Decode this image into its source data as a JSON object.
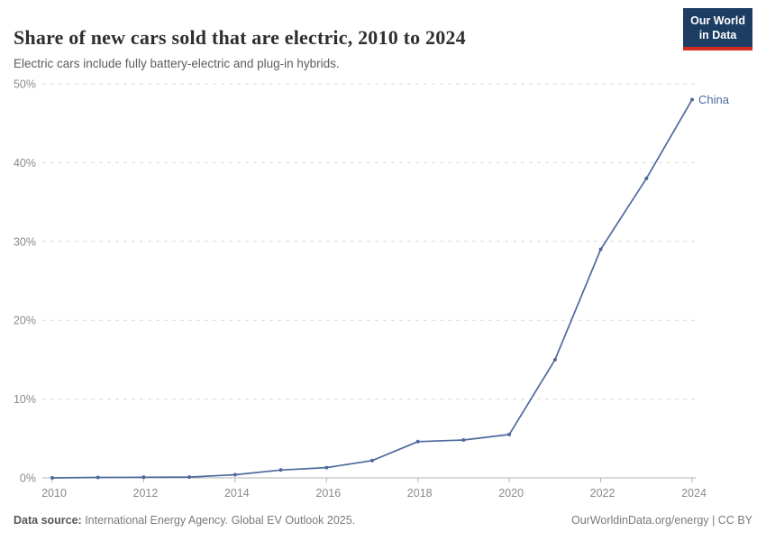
{
  "header": {
    "title": "Share of new cars sold that are electric, 2010 to 2024",
    "subtitle": "Electric cars include fully battery-electric and plug-in hybrids."
  },
  "logo": {
    "line1": "Our World",
    "line2": "in Data"
  },
  "chart_data": {
    "type": "line",
    "title": "Share of new cars sold that are electric, 2010 to 2024",
    "x": [
      2010,
      2011,
      2012,
      2013,
      2014,
      2015,
      2016,
      2017,
      2018,
      2019,
      2020,
      2021,
      2022,
      2023,
      2024
    ],
    "series": [
      {
        "name": "China",
        "values": [
          0,
          0.06,
          0.08,
          0.1,
          0.4,
          1,
          1.3,
          2.2,
          4.6,
          4.8,
          5.5,
          15,
          29,
          38,
          48
        ]
      }
    ],
    "xlabel": "",
    "ylabel": "",
    "ylim": [
      0,
      50
    ],
    "yticks": [
      0,
      10,
      20,
      30,
      40,
      50
    ],
    "ytick_suffix": "%",
    "xticks": [
      2010,
      2012,
      2014,
      2016,
      2018,
      2020,
      2022,
      2024
    ],
    "grid": "horizontal-dashed",
    "legend_position": "end-of-line-label",
    "end_label": "China",
    "markers": true
  },
  "colors": {
    "series": "#4C6A9C",
    "end_label": "#4C6A9C",
    "grid": "#d9d9d9",
    "axis": "#b3b3b3",
    "tick_text": "#8a8a8a",
    "logo_background": "#1d3d63",
    "logo_accent": "#d42b21"
  },
  "footer": {
    "source_label": "Data source:",
    "source_text": " International Energy Agency. Global EV Outlook 2025.",
    "credit": "OurWorldinData.org/energy | CC BY"
  }
}
